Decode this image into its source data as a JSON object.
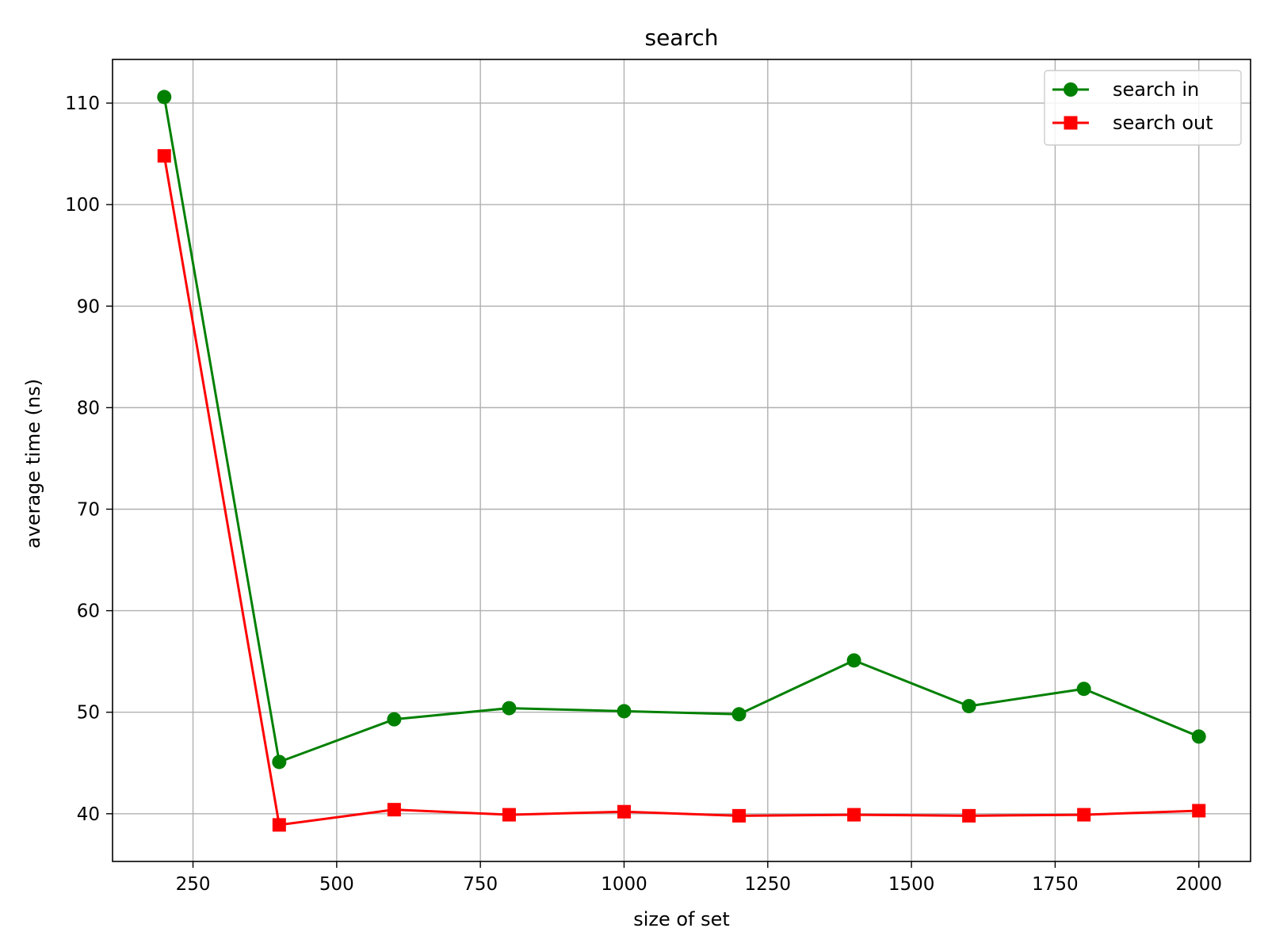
{
  "chart_data": {
    "type": "line",
    "title": "search",
    "xlabel": "size of set",
    "ylabel": "average time (ns)",
    "xlim": [
      110,
      2090
    ],
    "ylim": [
      35.3,
      114.3
    ],
    "xticks": [
      250,
      500,
      750,
      1000,
      1250,
      1500,
      1750,
      2000
    ],
    "yticks": [
      40,
      50,
      60,
      70,
      80,
      90,
      100,
      110
    ],
    "grid": true,
    "legend_position": "top-right",
    "x": [
      200,
      400,
      600,
      800,
      1000,
      1200,
      1400,
      1600,
      1800,
      2000
    ],
    "series": [
      {
        "name": "search in",
        "color": "#008000",
        "marker": "circle",
        "values": [
          110.6,
          45.1,
          49.3,
          50.4,
          50.1,
          49.8,
          55.1,
          50.6,
          52.3,
          47.6
        ]
      },
      {
        "name": "search out",
        "color": "#ff0000",
        "marker": "square",
        "values": [
          104.8,
          38.9,
          40.4,
          39.9,
          40.2,
          39.8,
          39.9,
          39.8,
          39.9,
          40.3
        ]
      }
    ]
  }
}
